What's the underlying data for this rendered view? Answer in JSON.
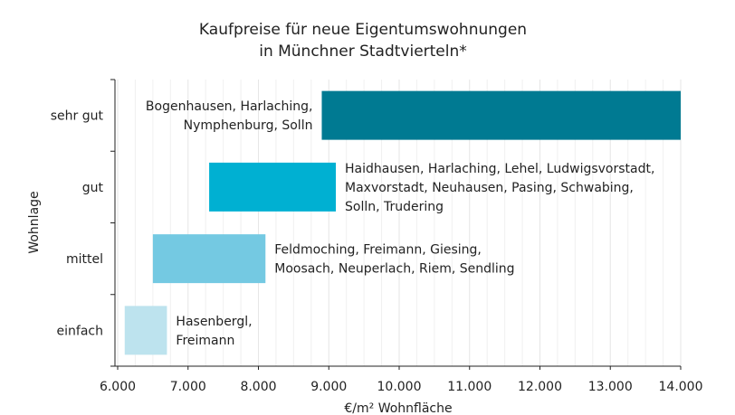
{
  "chart_data": {
    "type": "bar",
    "orientation": "horizontal-range",
    "title": [
      "Kaufpreise für neue Eigentumswohnungen",
      "in Münchner Stadtvierteln*"
    ],
    "xlabel": "€/m² Wohnfläche",
    "ylabel": "Wohnlage",
    "xlim": [
      6000,
      14000
    ],
    "x_ticks": [
      6000,
      7000,
      8000,
      9000,
      10000,
      11000,
      12000,
      13000,
      14000
    ],
    "x_tick_labels": [
      "6.000",
      "7.000",
      "8.000",
      "9.000",
      "10.000",
      "11.000",
      "12.000",
      "13.000",
      "14.000"
    ],
    "grid": "vertical",
    "categories": [
      "sehr gut",
      "gut",
      "mittel",
      "einfach"
    ],
    "ranges": [
      {
        "category": "sehr gut",
        "min": 8900,
        "max": 14000,
        "color": "#007a92",
        "label_lines": [
          "Bogenhausen, Harlaching,",
          "Nymphenburg, Solln"
        ],
        "label_side": "left"
      },
      {
        "category": "gut",
        "min": 7300,
        "max": 9100,
        "color": "#00b0d2",
        "label_lines": [
          "Haidhausen, Harlaching, Lehel, Ludwigsvorstadt,",
          "Maxvorstadt, Neuhausen, Pasing, Schwabing,",
          "Solln, Trudering"
        ],
        "label_side": "right"
      },
      {
        "category": "mittel",
        "min": 6500,
        "max": 8100,
        "color": "#74c9e2",
        "label_lines": [
          "Feldmoching, Freimann, Giesing,",
          "Moosach, Neuperlach, Riem, Sendling"
        ],
        "label_side": "right"
      },
      {
        "category": "einfach",
        "min": 6100,
        "max": 6700,
        "color": "#bde3ee",
        "label_lines": [
          "Hasenbergl,",
          "Freimann"
        ],
        "label_side": "right"
      }
    ]
  }
}
